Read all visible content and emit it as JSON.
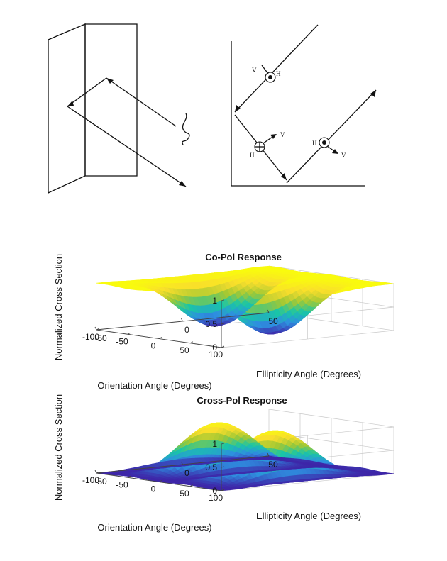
{
  "figure": {
    "diagram_labels": {
      "v": "V",
      "h": "H"
    }
  },
  "chart_data": [
    {
      "type": "surface",
      "title": "Co-Pol Response",
      "xlabel": "Ellipticity Angle (Degrees)",
      "ylabel": "Orientation Angle (Degrees)",
      "zlabel": "Normalized Cross Section",
      "xlim": [
        -50,
        50
      ],
      "ylim": [
        -100,
        100
      ],
      "zlim": [
        0,
        1
      ],
      "xticks": [
        "-50",
        "0",
        "50"
      ],
      "yticks": [
        "100",
        "50",
        "0",
        "-50",
        "-100"
      ],
      "zticks": [
        "0",
        "0.5",
        "1"
      ],
      "function": "co-pol",
      "troughs": [
        {
          "orientation": 45,
          "ellipticity": 0,
          "value": 0
        },
        {
          "orientation": -45,
          "ellipticity": 0,
          "value": 0
        }
      ],
      "max_value": 1,
      "colormap": [
        "#3e26a8",
        "#2e8fe0",
        "#19c6a6",
        "#a3c833",
        "#f9de2c",
        "#f9fb0e"
      ]
    },
    {
      "type": "surface",
      "title": "Cross-Pol Response",
      "xlabel": "Ellipticity Angle (Degrees)",
      "ylabel": "Orientation Angle (Degrees)",
      "zlabel": "Normalized Cross Section",
      "xlim": [
        -50,
        50
      ],
      "ylim": [
        -100,
        100
      ],
      "zlim": [
        0,
        1
      ],
      "xticks": [
        "-50",
        "0",
        "50"
      ],
      "yticks": [
        "100",
        "50",
        "0",
        "-50",
        "-100"
      ],
      "zticks": [
        "0",
        "0.5",
        "1"
      ],
      "function": "cross-pol",
      "peaks": [
        {
          "orientation": 45,
          "ellipticity": 0,
          "value": 1
        },
        {
          "orientation": -45,
          "ellipticity": 0,
          "value": 1
        }
      ],
      "min_value": 0,
      "colormap": [
        "#3e26a8",
        "#2e8fe0",
        "#19c6a6",
        "#a3c833",
        "#f9de2c",
        "#f9fb0e"
      ]
    }
  ]
}
